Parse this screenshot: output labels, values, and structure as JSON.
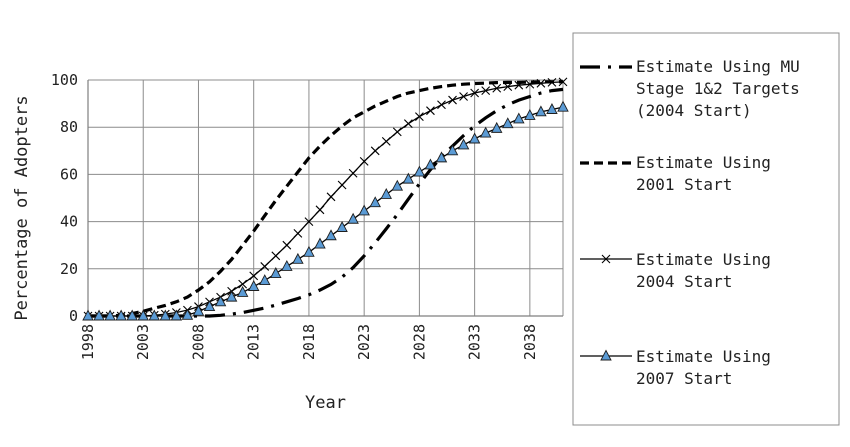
{
  "chart_data": {
    "type": "line",
    "xlabel": "Year",
    "ylabel": "Percentage of Adopters",
    "xlim": [
      1998,
      2041
    ],
    "ylim": [
      0,
      100
    ],
    "x_ticks": [
      "1998",
      "2003",
      "2008",
      "2013",
      "2018",
      "2023",
      "2028",
      "2033",
      "2038"
    ],
    "y_ticks": [
      "0",
      "20",
      "40",
      "60",
      "80",
      "100"
    ],
    "grid": true,
    "legend_placement": "right",
    "x": [
      1998,
      1999,
      2000,
      2001,
      2002,
      2003,
      2004,
      2005,
      2006,
      2007,
      2008,
      2009,
      2010,
      2011,
      2012,
      2013,
      2014,
      2015,
      2016,
      2017,
      2018,
      2019,
      2020,
      2021,
      2022,
      2023,
      2024,
      2025,
      2026,
      2027,
      2028,
      2029,
      2030,
      2031,
      2032,
      2033,
      2034,
      2035,
      2036,
      2037,
      2038,
      2039,
      2040,
      2041
    ],
    "series": [
      {
        "name": "Estimate Using MU Stage 1&2 Targets (2004 Start)",
        "style": "long-dash-dot",
        "marker": "none",
        "color": "#000000",
        "values": [
          0,
          0,
          0,
          0,
          0,
          0,
          0,
          0,
          0,
          0,
          0,
          0,
          0.3,
          0.8,
          1.5,
          2.4,
          3.4,
          4.6,
          6,
          7.4,
          9,
          11,
          13.4,
          16.5,
          20.5,
          25.5,
          31,
          37,
          43,
          49.5,
          56,
          62,
          67.5,
          72,
          76.5,
          80.5,
          84,
          87,
          89.5,
          91.5,
          93,
          94.5,
          95.5,
          96
        ]
      },
      {
        "name": "Estimate Using 2001 Start",
        "style": "dashed",
        "marker": "none",
        "color": "#000000",
        "values": [
          0,
          0,
          0,
          0.3,
          1,
          2,
          3.3,
          4.5,
          6,
          8,
          11,
          14.5,
          19,
          24,
          30,
          36,
          42.5,
          49,
          55,
          61,
          67,
          72,
          76.5,
          80.5,
          84,
          86.5,
          89,
          91,
          93,
          94.5,
          95.5,
          96.5,
          97.2,
          97.8,
          98.2,
          98.5,
          98.7,
          98.9,
          99,
          99,
          99.1,
          99.2,
          99.2,
          99.3
        ]
      },
      {
        "name": "Estimate Using 2004 Start",
        "style": "solid",
        "marker": "x",
        "color": "#000000",
        "values": [
          0,
          0,
          0,
          0,
          0,
          0,
          0.3,
          0.8,
          1.5,
          2.5,
          4,
          6,
          8,
          10.5,
          13.5,
          17,
          21,
          25.5,
          30,
          35,
          40,
          45,
          50.5,
          55.5,
          60.5,
          65.5,
          70,
          74,
          78,
          81.5,
          84.5,
          87,
          89.5,
          91.5,
          93,
          94.5,
          95.5,
          96.5,
          97.2,
          97.8,
          98.2,
          98.6,
          99,
          99.2
        ]
      },
      {
        "name": "Estimate Using 2007 Start",
        "style": "solid",
        "marker": "triangle",
        "color": "#000000",
        "marker_color": "#5b9bd5",
        "values": [
          0,
          0,
          0,
          0,
          0,
          0,
          0,
          0,
          0,
          0.3,
          2,
          4,
          6,
          8,
          10,
          12.5,
          15,
          18,
          21,
          24,
          27,
          30.5,
          34,
          37.5,
          41,
          44.5,
          48,
          51.5,
          55,
          58,
          61,
          64,
          67,
          70,
          72.5,
          75,
          77.5,
          79.5,
          81.5,
          83.5,
          85,
          86.5,
          87.5,
          88.5
        ]
      }
    ]
  }
}
